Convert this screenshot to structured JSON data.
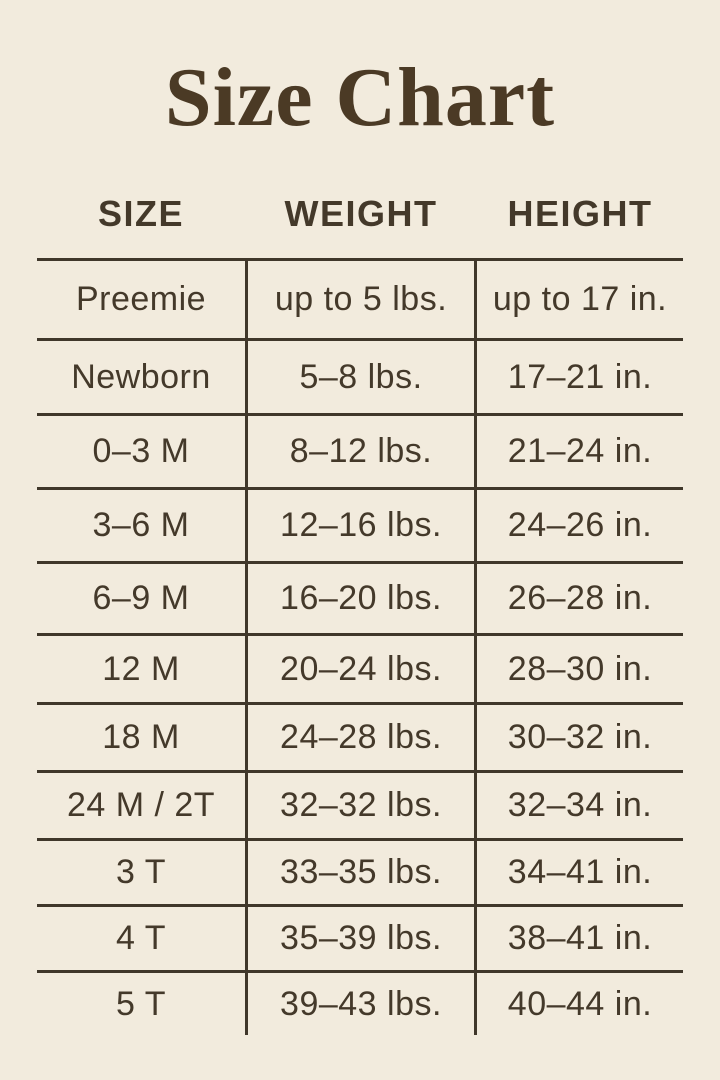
{
  "title": "Size Chart",
  "table": {
    "headers": [
      "SIZE",
      "WEIGHT",
      "HEIGHT"
    ],
    "rows": [
      [
        "Preemie",
        "up to 5 lbs.",
        "up to 17 in."
      ],
      [
        "Newborn",
        "5–8 lbs.",
        "17–21 in."
      ],
      [
        "0–3 M",
        "8–12 lbs.",
        "21–24 in."
      ],
      [
        "3–6 M",
        "12–16 lbs.",
        "24–26 in."
      ],
      [
        "6–9 M",
        "16–20 lbs.",
        "26–28 in."
      ],
      [
        "12 M",
        "20–24 lbs.",
        "28–30 in."
      ],
      [
        "18 M",
        "24–28 lbs.",
        "30–32 in."
      ],
      [
        "24 M / 2T",
        "32–32 lbs.",
        "32–34 in."
      ],
      [
        "3 T",
        "33–35 lbs.",
        "34–41 in."
      ],
      [
        "4 T",
        "35–39 lbs.",
        "38–41 in."
      ],
      [
        "5 T",
        "39–43 lbs.",
        "40–44 in."
      ]
    ]
  },
  "colors": {
    "background": "#f2ebdd",
    "text": "#44392a",
    "line": "#40372a",
    "title": "#4b3a25"
  }
}
